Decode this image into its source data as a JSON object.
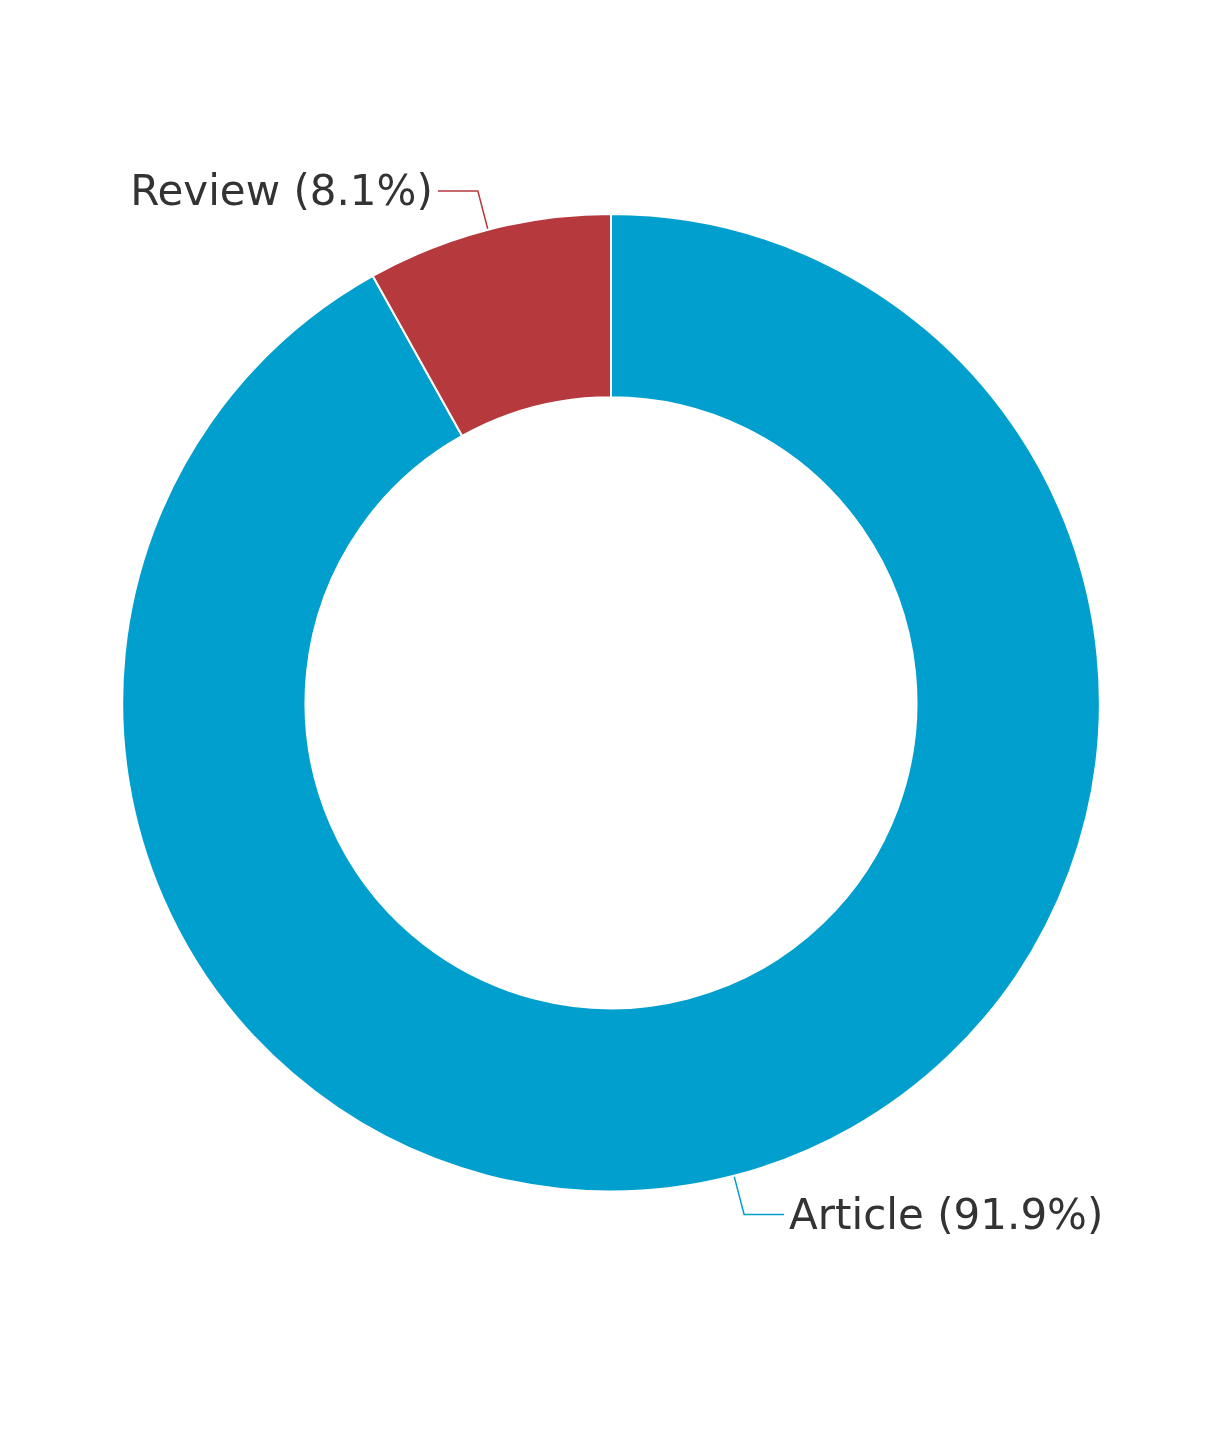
{
  "chart_data": {
    "type": "donut",
    "categories": [
      "Article",
      "Review"
    ],
    "values": [
      91.9,
      8.1
    ],
    "colors": [
      "#009fce",
      "#b5393d"
    ],
    "value_labels": [
      "(91.9%)",
      "(8.1%)"
    ],
    "legend": false
  }
}
